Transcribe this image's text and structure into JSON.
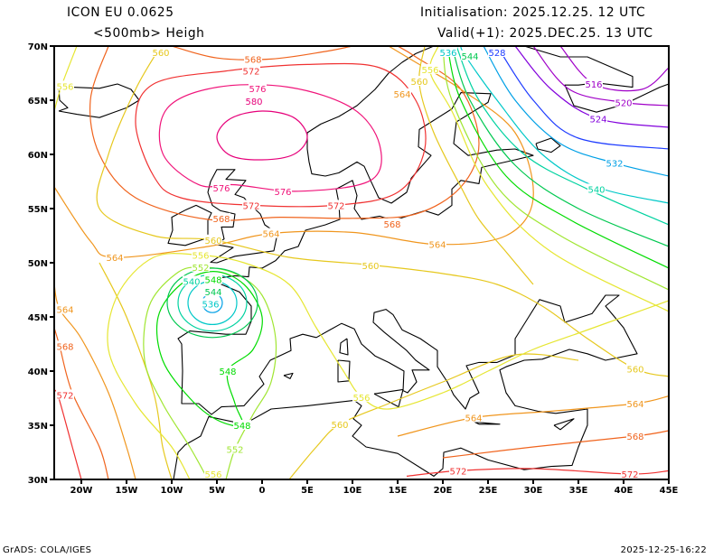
{
  "header": {
    "model": "ICON EU  0.0625",
    "field": "<500mb> Heigh",
    "init": "Initialisation: 2025.12.25. 12 UTC",
    "valid": "Valid(+1): 2025.DEC.25. 13 UTC"
  },
  "footer": {
    "credit": "GrADS: COLA/IGES",
    "timestamp": "2025-12-25-16:22"
  },
  "map": {
    "lon_range": [
      -23,
      45
    ],
    "lat_range": [
      30,
      70
    ],
    "lon_ticks": {
      "values": [
        -20,
        -15,
        -10,
        -5,
        0,
        5,
        10,
        15,
        20,
        25,
        30,
        35,
        40,
        45
      ],
      "labels": [
        "20W",
        "15W",
        "10W",
        "5W",
        "0",
        "5E",
        "10E",
        "15E",
        "20E",
        "25E",
        "30E",
        "35E",
        "40E",
        "45E"
      ]
    },
    "lat_ticks": {
      "values": [
        30,
        35,
        40,
        45,
        50,
        55,
        60,
        65,
        70
      ],
      "labels": [
        "30N",
        "35N",
        "40N",
        "45N",
        "50N",
        "55N",
        "60N",
        "65N",
        "70N"
      ]
    },
    "coast_color": "#000000"
  },
  "contours": [
    {
      "value": "580",
      "color": "#e6007a",
      "closed": true,
      "points": [
        [
          -5,
          61.6
        ],
        [
          -3.5,
          63.3
        ],
        [
          0,
          64
        ],
        [
          3.5,
          63.4
        ],
        [
          5,
          61.6
        ],
        [
          3.5,
          60
        ],
        [
          0,
          59.5
        ],
        [
          -3.5,
          59.9
        ]
      ],
      "labels": [
        [
          -0.9,
          64.9
        ]
      ]
    },
    {
      "value": "576",
      "color": "#f0147a",
      "closed": true,
      "points": [
        [
          -7,
          57.2
        ],
        [
          -11,
          60.1
        ],
        [
          -10.5,
          64.25
        ],
        [
          -5,
          66.2
        ],
        [
          3,
          66.2
        ],
        [
          10,
          64.25
        ],
        [
          13,
          60.9
        ],
        [
          12,
          57.6
        ],
        [
          4,
          56.6
        ],
        [
          -3,
          57.2
        ]
      ],
      "labels": [
        [
          -0.5,
          66.1
        ],
        [
          -4.5,
          56.9
        ],
        [
          2.3,
          56.6
        ]
      ]
    },
    {
      "value": "572",
      "color": "#f03232",
      "closed": true,
      "points": [
        [
          -4,
          67.7
        ],
        [
          -12,
          66.5
        ],
        [
          -14,
          63
        ],
        [
          -12,
          58
        ],
        [
          -9,
          56
        ],
        [
          -1,
          55.3
        ],
        [
          8,
          55.3
        ],
        [
          15,
          56.5
        ],
        [
          18,
          60.5
        ],
        [
          17,
          65
        ],
        [
          13,
          68
        ],
        [
          5,
          68.3
        ]
      ],
      "labels": [
        [
          -1.2,
          67.7
        ],
        [
          -1.2,
          55.3
        ],
        [
          8.2,
          55.3
        ]
      ]
    },
    {
      "value": "572",
      "color": "#f03232",
      "closed": false,
      "points": [
        [
          16,
          30.3
        ],
        [
          21.7,
          30.8
        ],
        [
          30,
          31
        ],
        [
          40.7,
          30.5
        ],
        [
          45,
          30.8
        ]
      ],
      "labels": [
        [
          21.7,
          30.8
        ],
        [
          40.7,
          30.4
        ]
      ]
    },
    {
      "value": "572",
      "color": "#f03232",
      "closed": false,
      "points": [
        [
          -23,
          38
        ],
        [
          -22.6,
          37.8
        ],
        [
          -21,
          33
        ],
        [
          -20,
          30
        ]
      ],
      "labels": [
        [
          -22.6,
          37.8
        ]
      ]
    },
    {
      "value": "568",
      "color": "#f0641e",
      "closed": false,
      "points": [
        [
          -17,
          70
        ],
        [
          -19,
          65
        ],
        [
          -18,
          60
        ],
        [
          -14,
          56
        ],
        [
          -6,
          54
        ],
        [
          2,
          54.2
        ],
        [
          10,
          54.1
        ],
        [
          17,
          54.5
        ],
        [
          22,
          57
        ],
        [
          24,
          61
        ],
        [
          22,
          66
        ],
        [
          17,
          69
        ],
        [
          15,
          70
        ]
      ],
      "labels": [
        [
          -4.5,
          54.1
        ],
        [
          14.4,
          53.6
        ]
      ]
    },
    {
      "value": "568",
      "color": "#f0641e",
      "closed": false,
      "points": [
        [
          -10,
          70
        ],
        [
          -5,
          68.9
        ],
        [
          1,
          68.8
        ],
        [
          7,
          69.5
        ],
        [
          10,
          70
        ]
      ],
      "labels": [
        [
          -1,
          68.8
        ]
      ]
    },
    {
      "value": "568",
      "color": "#f0641e",
      "closed": false,
      "points": [
        [
          20,
          32
        ],
        [
          30,
          33
        ],
        [
          41.3,
          34
        ],
        [
          45,
          34.5
        ]
      ],
      "labels": [
        [
          41.3,
          34
        ]
      ]
    },
    {
      "value": "568",
      "color": "#f0641e",
      "closed": false,
      "points": [
        [
          -23,
          44
        ],
        [
          -22.4,
          42.3
        ],
        [
          -21,
          38
        ],
        [
          -18,
          33
        ],
        [
          -17,
          30
        ]
      ],
      "labels": [
        [
          -22.4,
          42.3
        ]
      ]
    },
    {
      "value": "564",
      "color": "#f0961e",
      "closed": false,
      "points": [
        [
          -23,
          57
        ],
        [
          -19,
          52
        ],
        [
          -16.3,
          50.5
        ],
        [
          -6,
          51.5
        ],
        [
          1,
          52.7
        ],
        [
          10,
          52.8
        ],
        [
          19.4,
          51.7
        ],
        [
          27,
          52.5
        ],
        [
          30,
          56
        ],
        [
          28,
          62
        ],
        [
          22,
          66
        ],
        [
          17,
          68.5
        ],
        [
          14,
          70
        ]
      ],
      "labels": [
        [
          -16.3,
          50.5
        ],
        [
          1,
          52.7
        ],
        [
          19.4,
          51.7
        ],
        [
          15.5,
          65.6
        ]
      ]
    },
    {
      "value": "564",
      "color": "#f0961e",
      "closed": false,
      "points": [
        [
          -23,
          48
        ],
        [
          -22.4,
          45.7
        ],
        [
          -20,
          43
        ],
        [
          -17,
          38
        ],
        [
          -15,
          33
        ],
        [
          -14,
          30
        ]
      ],
      "labels": [
        [
          -22.4,
          45.7
        ]
      ]
    },
    {
      "value": "564",
      "color": "#f0961e",
      "closed": false,
      "points": [
        [
          15,
          34
        ],
        [
          23.4,
          35.7
        ],
        [
          32,
          36.3
        ],
        [
          41.3,
          37
        ],
        [
          45,
          37.7
        ]
      ],
      "labels": [
        [
          23.4,
          35.7
        ],
        [
          41.3,
          37
        ]
      ]
    },
    {
      "value": "560",
      "color": "#e6c81e",
      "closed": false,
      "points": [
        [
          -11.2,
          70
        ],
        [
          -14,
          66
        ],
        [
          -17,
          60
        ],
        [
          -18,
          55
        ],
        [
          -12,
          52.5
        ],
        [
          -5.4,
          52.1
        ],
        [
          3,
          50.5
        ],
        [
          12,
          49.8
        ],
        [
          20,
          49
        ],
        [
          26,
          48
        ],
        [
          31,
          46
        ],
        [
          36,
          43
        ],
        [
          41.3,
          40.2
        ],
        [
          45,
          39.5
        ]
      ],
      "labels": [
        [
          -11.2,
          69.8
        ],
        [
          -5.4,
          52.1
        ],
        [
          12,
          49.75
        ],
        [
          41.3,
          40.2
        ]
      ]
    },
    {
      "value": "560",
      "color": "#e6c81e",
      "closed": false,
      "points": [
        [
          18,
          70
        ],
        [
          17.4,
          66.5
        ],
        [
          19,
          62
        ],
        [
          22,
          57
        ],
        [
          24,
          54
        ],
        [
          27,
          51
        ],
        [
          30,
          48
        ]
      ],
      "labels": [
        [
          17.4,
          66.5
        ]
      ]
    },
    {
      "value": "560",
      "color": "#e6c81e",
      "closed": false,
      "points": [
        [
          -10,
          30
        ],
        [
          -11,
          33
        ],
        [
          -12,
          38
        ],
        [
          -15,
          45
        ],
        [
          -18,
          50
        ]
      ],
      "labels": []
    },
    {
      "value": "560",
      "color": "#e6c81e",
      "closed": false,
      "points": [
        [
          3,
          30
        ],
        [
          6,
          33
        ],
        [
          8.6,
          35.1
        ],
        [
          14,
          37
        ],
        [
          20,
          39
        ],
        [
          28,
          41.5
        ],
        [
          35,
          41
        ]
      ],
      "labels": [
        [
          8.6,
          35.1
        ]
      ]
    },
    {
      "value": "556",
      "color": "#e6e632",
      "closed": false,
      "points": [
        [
          -8,
          30
        ],
        [
          -10,
          33
        ],
        [
          -14,
          37
        ],
        [
          -17,
          42
        ],
        [
          -16,
          47
        ],
        [
          -12,
          50.5
        ],
        [
          -6.8,
          50.7
        ],
        [
          -2,
          50
        ],
        [
          3,
          48
        ],
        [
          6,
          44
        ],
        [
          9,
          40
        ],
        [
          11,
          37.6
        ],
        [
          14,
          36.5
        ],
        [
          20,
          38
        ],
        [
          25,
          40
        ],
        [
          30,
          42
        ],
        [
          35,
          43.5
        ],
        [
          40,
          45
        ],
        [
          45,
          46.5
        ]
      ],
      "labels": [
        [
          -6.8,
          50.7
        ],
        [
          11,
          37.6
        ]
      ]
    },
    {
      "value": "556",
      "color": "#e6e632",
      "closed": false,
      "points": [
        [
          -5.4,
          30
        ],
        [
          -5.4,
          30.2
        ]
      ],
      "labels": [
        [
          -5.4,
          30.2
        ]
      ]
    },
    {
      "value": "556",
      "color": "#e6e632",
      "closed": false,
      "points": [
        [
          19.5,
          70
        ],
        [
          18.6,
          67.6
        ],
        [
          21,
          64
        ],
        [
          25,
          57
        ],
        [
          32,
          51
        ],
        [
          45,
          45.5
        ]
      ],
      "labels": [
        [
          18.6,
          67.6
        ]
      ]
    },
    {
      "value": "556",
      "color": "#e6e632",
      "closed": false,
      "points": [
        [
          -23,
          64
        ],
        [
          -22.2,
          66.3
        ],
        [
          -20.5,
          70
        ]
      ],
      "labels": [
        [
          -22.2,
          66.3
        ]
      ]
    },
    {
      "value": "552",
      "color": "#a0e632",
      "closed": false,
      "points": [
        [
          -6,
          30
        ],
        [
          -8,
          33
        ],
        [
          -11,
          37
        ],
        [
          -13,
          41
        ],
        [
          -12.5,
          46
        ],
        [
          -9.5,
          49
        ],
        [
          -6.8,
          49.6
        ],
        [
          -3,
          49
        ],
        [
          0,
          47
        ],
        [
          1.5,
          43
        ],
        [
          1,
          39
        ],
        [
          -1,
          36
        ],
        [
          -3,
          32.8
        ],
        [
          -4,
          30
        ]
      ],
      "labels": [
        [
          -6.8,
          49.6
        ],
        [
          -3,
          32.8
        ]
      ]
    },
    {
      "value": "552",
      "color": "#a0e632",
      "closed": false,
      "points": [
        [
          20,
          70
        ],
        [
          21,
          65
        ],
        [
          26,
          57
        ],
        [
          33,
          52.5
        ],
        [
          45,
          47.5
        ]
      ],
      "labels": []
    },
    {
      "value": "548",
      "color": "#00dc00",
      "closed": true,
      "points": [
        [
          -5.4,
          49.2
        ],
        [
          -9,
          48
        ],
        [
          -11.5,
          45
        ],
        [
          -11,
          41
        ],
        [
          -8,
          37.5
        ],
        [
          -5,
          35.5
        ],
        [
          -2.2,
          35
        ],
        [
          -3,
          37
        ],
        [
          -3.8,
          40
        ],
        [
          -1,
          42
        ],
        [
          0,
          45
        ],
        [
          -2,
          48
        ]
      ],
      "labels": [
        [
          -5.4,
          49.2
        ],
        [
          -3.8,
          40
        ],
        [
          -2.2,
          35
        ]
      ]
    },
    {
      "value": "548",
      "color": "#00dc00",
      "closed": false,
      "points": [
        [
          20.5,
          70
        ],
        [
          22,
          65
        ],
        [
          27,
          58
        ],
        [
          34,
          54
        ],
        [
          45,
          49.5
        ]
      ],
      "labels": []
    },
    {
      "value": "544",
      "color": "#00c850",
      "closed": true,
      "ellipse": [
        -5.5,
        46.3,
        5,
        3.2
      ],
      "points": [],
      "labels": [
        [
          -5.4,
          48.9
        ]
      ]
    },
    {
      "value": "544",
      "color": "#00c850",
      "closed": false,
      "points": [
        [
          21,
          70
        ],
        [
          23,
          65
        ],
        [
          28,
          59
        ],
        [
          35,
          55
        ],
        [
          45,
          51.5
        ]
      ],
      "labels": [
        [
          23,
          69.1
        ]
      ]
    },
    {
      "value": "540",
      "color": "#00d2a0",
      "closed": true,
      "ellipse": [
        -5.5,
        46.3,
        3.8,
        2.6
      ],
      "points": [],
      "labels": [
        [
          -5.4,
          48.3
        ]
      ]
    },
    {
      "value": "540",
      "color": "#00d2a0",
      "closed": false,
      "points": [
        [
          21.5,
          70
        ],
        [
          24,
          65
        ],
        [
          29,
          60
        ],
        [
          36,
          56.8
        ],
        [
          45,
          53.5
        ]
      ],
      "labels": [
        [
          37,
          56.8
        ]
      ]
    },
    {
      "value": "536",
      "color": "#00c8c8",
      "closed": true,
      "ellipse": [
        -5.5,
        46.3,
        2.7,
        2
      ],
      "points": [],
      "labels": [
        [
          -5.7,
          47.3
        ]
      ]
    },
    {
      "value": "536",
      "color": "#00c8c8",
      "closed": false,
      "points": [
        [
          22.5,
          70
        ],
        [
          22.2,
          69.5
        ],
        [
          26,
          65
        ],
        [
          31,
          60
        ],
        [
          37,
          57
        ],
        [
          45,
          55.5
        ]
      ],
      "labels": [
        [
          22.2,
          69.5
        ]
      ]
    },
    {
      "value": "532",
      "color": "#00a0e6",
      "closed": true,
      "ellipse": [
        -5.5,
        46.3,
        1.1,
        0.9
      ],
      "points": [],
      "labels": []
    },
    {
      "value": "532",
      "color": "#00a0e6",
      "closed": false,
      "points": [
        [
          24.5,
          70
        ],
        [
          28,
          65
        ],
        [
          33,
          61
        ],
        [
          39,
          59.2
        ],
        [
          45,
          58
        ]
      ],
      "labels": [
        [
          39,
          59.2
        ]
      ]
    },
    {
      "value": "528",
      "color": "#1e3cff",
      "closed": false,
      "points": [
        [
          26,
          70
        ],
        [
          30,
          65
        ],
        [
          35,
          61.5
        ],
        [
          45,
          60.5
        ]
      ],
      "labels": [
        [
          26,
          69.8
        ]
      ]
    },
    {
      "value": "524",
      "color": "#8200dc",
      "closed": false,
      "points": [
        [
          28,
          70
        ],
        [
          32,
          66
        ],
        [
          37.2,
          63.3
        ],
        [
          45,
          62.5
        ]
      ],
      "labels": [
        [
          37.2,
          63.3
        ]
      ]
    },
    {
      "value": "520",
      "color": "#a000c8",
      "closed": false,
      "points": [
        [
          30,
          70
        ],
        [
          34,
          66
        ],
        [
          40,
          64.8
        ],
        [
          45,
          64.5
        ]
      ],
      "labels": [
        [
          40,
          64.8
        ]
      ]
    },
    {
      "value": "516",
      "color": "#a000c8",
      "closed": false,
      "points": [
        [
          33,
          70
        ],
        [
          36.7,
          66.5
        ],
        [
          42,
          66
        ],
        [
          45,
          68
        ]
      ],
      "labels": [
        [
          36.7,
          66.5
        ]
      ]
    }
  ]
}
